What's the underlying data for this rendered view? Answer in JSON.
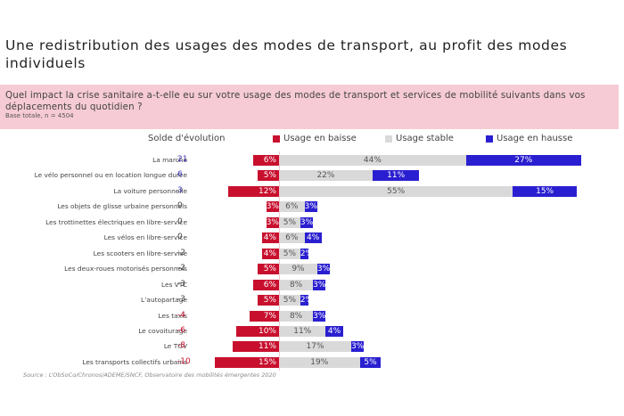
{
  "header": {
    "title": "Une redistribution des usages des modes de transport, au profit des modes individuels",
    "question": "Quel impact la crise sanitaire a-t-elle eu sur votre usage des modes de transport et services de mobilité suivants dans vos déplacements du quotidien ?",
    "base": "Base totale, n = 4504"
  },
  "colors": {
    "baisse": "#c8102e",
    "stable": "#d9d9d9",
    "hausse": "#2a1fd0",
    "solde_positive": "#3b33b8",
    "solde_neutral": "#444444",
    "solde_negative": "#c8102e",
    "band": "#f6cbd5"
  },
  "chart_data": {
    "type": "bar",
    "subtype": "diverging-stacked-horizontal",
    "title": "Une redistribution des usages des modes de transport, au profit des modes individuels",
    "solde_header": "Solde d'évolution",
    "unit": "%",
    "legend": [
      {
        "key": "baisse",
        "label": "Usage en baisse"
      },
      {
        "key": "stable",
        "label": "Usage stable"
      },
      {
        "key": "hausse",
        "label": "Usage en hausse"
      }
    ],
    "legend_position": "top",
    "categories": [
      "La marche",
      "Le vélo personnel ou en location longue durée",
      "La voiture personnelle",
      "Les objets de glisse urbaine personnels",
      "Les trottinettes électriques en libre-service",
      "Les vélos en libre-service",
      "Les scooters en libre-service",
      "Les deux-roues motorisés personnels",
      "Les VTC",
      "L’autopartage",
      "Les taxis",
      "Le covoiturage",
      "Le TGV",
      "Les transports collectifs urbains"
    ],
    "series": [
      {
        "name": "Usage en baisse",
        "key": "baisse",
        "values": [
          6,
          5,
          12,
          3,
          3,
          4,
          4,
          5,
          6,
          5,
          7,
          10,
          11,
          15
        ]
      },
      {
        "name": "Usage stable",
        "key": "stable",
        "values": [
          44,
          22,
          55,
          6,
          5,
          6,
          5,
          9,
          8,
          5,
          8,
          11,
          17,
          19
        ]
      },
      {
        "name": "Usage en hausse",
        "key": "hausse",
        "values": [
          27,
          11,
          15,
          3,
          3,
          4,
          2,
          3,
          3,
          2,
          3,
          4,
          3,
          5
        ]
      }
    ],
    "solde": [
      21,
      6,
      3,
      0,
      0,
      0,
      -2,
      -2,
      -3,
      -3,
      -4,
      -6,
      -8,
      -10
    ],
    "source": "Source : L’ObSoCo/Chronos/ADEME/SNCF, Observatoire des mobilités émergentes 2020"
  }
}
